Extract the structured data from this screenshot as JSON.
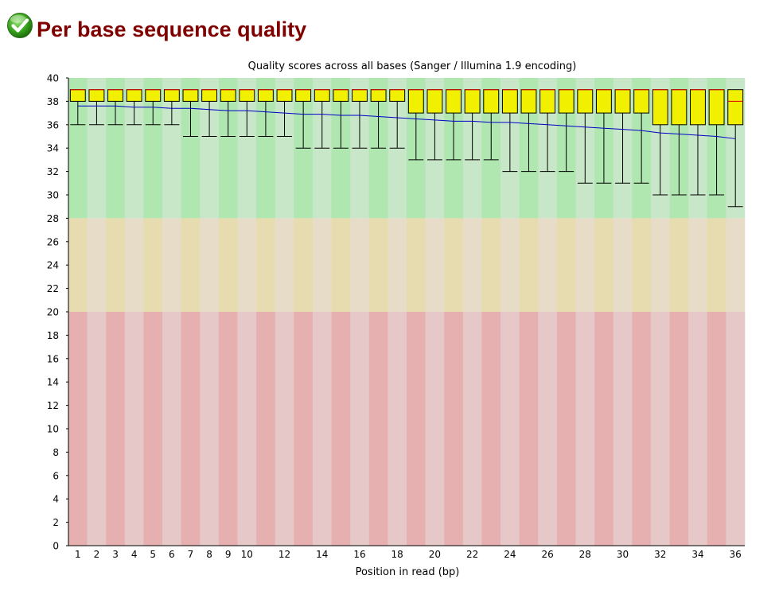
{
  "page": {
    "title": "Per base sequence quality",
    "status_icon": "check-circle-icon",
    "status": "pass"
  },
  "colors": {
    "title": "#800000",
    "good_a": "#b0e6b0",
    "good_b": "#c8e6c8",
    "warn_a": "#e6dcb0",
    "warn_b": "#e6dcc8",
    "bad_a": "#e6b0b0",
    "bad_b": "#e6c8c8",
    "box_fill": "#f0f000",
    "median": "#e00000",
    "mean": "#0000c8"
  },
  "chart_data": {
    "type": "boxplot",
    "title": "Quality scores across all bases (Sanger / Illumina 1.9 encoding)",
    "xlabel": "Position in read (bp)",
    "ylabel": "",
    "ylim": [
      0,
      40
    ],
    "yticks": [
      0,
      2,
      4,
      6,
      8,
      10,
      12,
      14,
      16,
      18,
      20,
      22,
      24,
      26,
      28,
      30,
      32,
      34,
      36,
      38,
      40
    ],
    "categories": [
      "1",
      "2",
      "3",
      "4",
      "5",
      "6",
      "7",
      "8",
      "9",
      "10",
      "11",
      "12",
      "13",
      "14",
      "15",
      "16",
      "17",
      "18",
      "19",
      "20",
      "21",
      "22",
      "23",
      "24",
      "25",
      "26",
      "27",
      "28",
      "29",
      "30",
      "31",
      "32",
      "33",
      "34",
      "35",
      "36"
    ],
    "xtick_labels": [
      "1",
      "2",
      "3",
      "4",
      "5",
      "6",
      "7",
      "8",
      "9",
      "10",
      "",
      "12",
      "",
      "14",
      "",
      "16",
      "",
      "18",
      "",
      "20",
      "",
      "22",
      "",
      "24",
      "",
      "26",
      "",
      "28",
      "",
      "30",
      "",
      "32",
      "",
      "34",
      "",
      "36"
    ],
    "zones": [
      {
        "name": "good",
        "from": 28,
        "to": 40
      },
      {
        "name": "warning",
        "from": 20,
        "to": 28
      },
      {
        "name": "bad",
        "from": 0,
        "to": 20
      }
    ],
    "q1": [
      38,
      38,
      38,
      38,
      38,
      38,
      38,
      38,
      38,
      38,
      38,
      38,
      38,
      38,
      38,
      38,
      38,
      38,
      37,
      37,
      37,
      37,
      37,
      37,
      37,
      37,
      37,
      37,
      37,
      37,
      37,
      36,
      36,
      36,
      36,
      36
    ],
    "q3": [
      39,
      39,
      39,
      39,
      39,
      39,
      39,
      39,
      39,
      39,
      39,
      39,
      39,
      39,
      39,
      39,
      39,
      39,
      39,
      39,
      39,
      39,
      39,
      39,
      39,
      39,
      39,
      39,
      39,
      39,
      39,
      39,
      39,
      39,
      39,
      39
    ],
    "median": [
      39,
      39,
      39,
      39,
      39,
      39,
      39,
      39,
      39,
      39,
      39,
      39,
      39,
      39,
      39,
      39,
      39,
      39,
      39,
      39,
      39,
      39,
      39,
      39,
      39,
      39,
      39,
      39,
      39,
      39,
      39,
      39,
      39,
      39,
      39,
      38
    ],
    "lower_whisker": [
      36,
      36,
      36,
      36,
      36,
      36,
      35,
      35,
      35,
      35,
      35,
      35,
      34,
      34,
      34,
      34,
      34,
      34,
      33,
      33,
      33,
      33,
      33,
      32,
      32,
      32,
      32,
      31,
      31,
      31,
      31,
      30,
      30,
      30,
      30,
      29
    ],
    "upper_whisker": [
      39,
      39,
      39,
      39,
      39,
      39,
      39,
      39,
      39,
      39,
      39,
      39,
      39,
      39,
      39,
      39,
      39,
      39,
      39,
      39,
      39,
      39,
      39,
      39,
      39,
      39,
      39,
      39,
      39,
      39,
      39,
      39,
      39,
      39,
      39,
      39
    ],
    "mean": [
      37.6,
      37.6,
      37.6,
      37.5,
      37.5,
      37.4,
      37.4,
      37.3,
      37.2,
      37.2,
      37.1,
      37.0,
      36.9,
      36.9,
      36.8,
      36.8,
      36.7,
      36.6,
      36.5,
      36.4,
      36.3,
      36.3,
      36.2,
      36.2,
      36.1,
      36.0,
      35.9,
      35.8,
      35.7,
      35.6,
      35.5,
      35.3,
      35.2,
      35.1,
      35.0,
      34.8
    ]
  }
}
